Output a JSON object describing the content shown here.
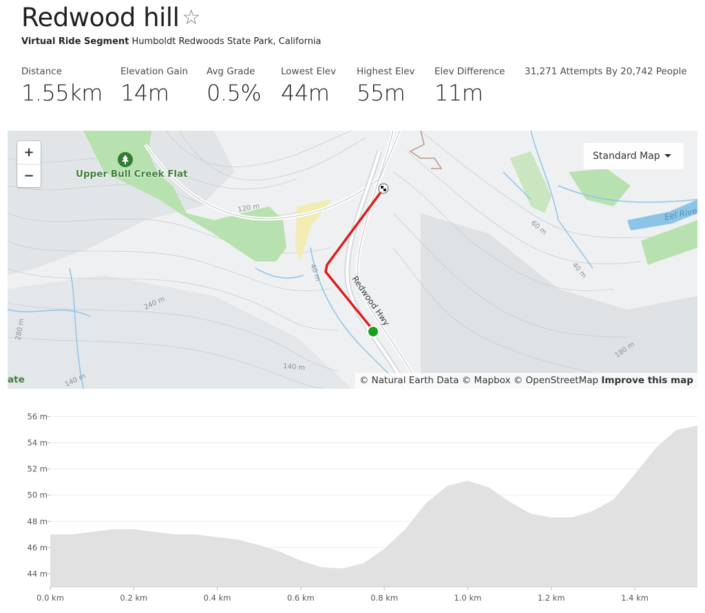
{
  "segment": {
    "title": "Redwood hill",
    "star_icon": "star-outline-icon",
    "subtitle_type": "Virtual Ride Segment",
    "subtitle_location": "Humboldt Redwoods State Park, California"
  },
  "stats": [
    {
      "label": "Distance",
      "value": "1.55km"
    },
    {
      "label": "Elevation Gain",
      "value": "14m"
    },
    {
      "label": "Avg Grade",
      "value": "0.5%"
    },
    {
      "label": "Lowest Elev",
      "value": "44m"
    },
    {
      "label": "Highest Elev",
      "value": "55m"
    },
    {
      "label": "Elev Difference",
      "value": "11m"
    }
  ],
  "attempts": "31,271 Attempts By 20,742 People",
  "map": {
    "zoom_in": "+",
    "zoom_out": "−",
    "map_type": "Standard Map",
    "place_label": "Upper Bull Creek Flat",
    "road_label": "Redwood Hwy",
    "river_label": "Eel Rive",
    "edge_label": "ate",
    "contour_labels": [
      "120 m",
      "240 m",
      "280 m",
      "140 m",
      "140 m",
      "40 m",
      "60 m",
      "40 m",
      "180 m"
    ],
    "attribution_text": "© Natural Earth Data © Mapbox © OpenStreetMap",
    "attribution_link": "Improve this map",
    "route_color": "#e01b1b",
    "start_color": "#19a31b",
    "park_color": "#b8e1b0",
    "water_color": "#8cc4e8"
  },
  "chart_data": {
    "type": "area",
    "xlabel": "",
    "ylabel": "",
    "x_ticks": [
      "0.0 km",
      "0.2 km",
      "0.4 km",
      "0.6 km",
      "0.8 km",
      "1.0 km",
      "1.2 km",
      "1.4 km"
    ],
    "y_ticks": [
      "44 m",
      "46 m",
      "48 m",
      "50 m",
      "52 m",
      "54 m",
      "56 m"
    ],
    "xlim": [
      0,
      1.55
    ],
    "ylim": [
      43,
      56.5
    ],
    "grid": true,
    "fill_color": "#e1e1e1",
    "x": [
      0.0,
      0.05,
      0.1,
      0.15,
      0.2,
      0.25,
      0.3,
      0.35,
      0.4,
      0.45,
      0.5,
      0.55,
      0.6,
      0.65,
      0.7,
      0.75,
      0.8,
      0.85,
      0.9,
      0.95,
      1.0,
      1.05,
      1.1,
      1.15,
      1.2,
      1.25,
      1.3,
      1.35,
      1.4,
      1.45,
      1.5,
      1.55
    ],
    "values": [
      47.0,
      47.0,
      47.2,
      47.4,
      47.4,
      47.2,
      47.0,
      47.0,
      46.8,
      46.6,
      46.2,
      45.7,
      45.0,
      44.5,
      44.4,
      44.8,
      45.9,
      47.4,
      49.4,
      50.7,
      51.1,
      50.6,
      49.5,
      48.6,
      48.3,
      48.3,
      48.8,
      49.7,
      51.6,
      53.6,
      55.0,
      55.3
    ]
  }
}
